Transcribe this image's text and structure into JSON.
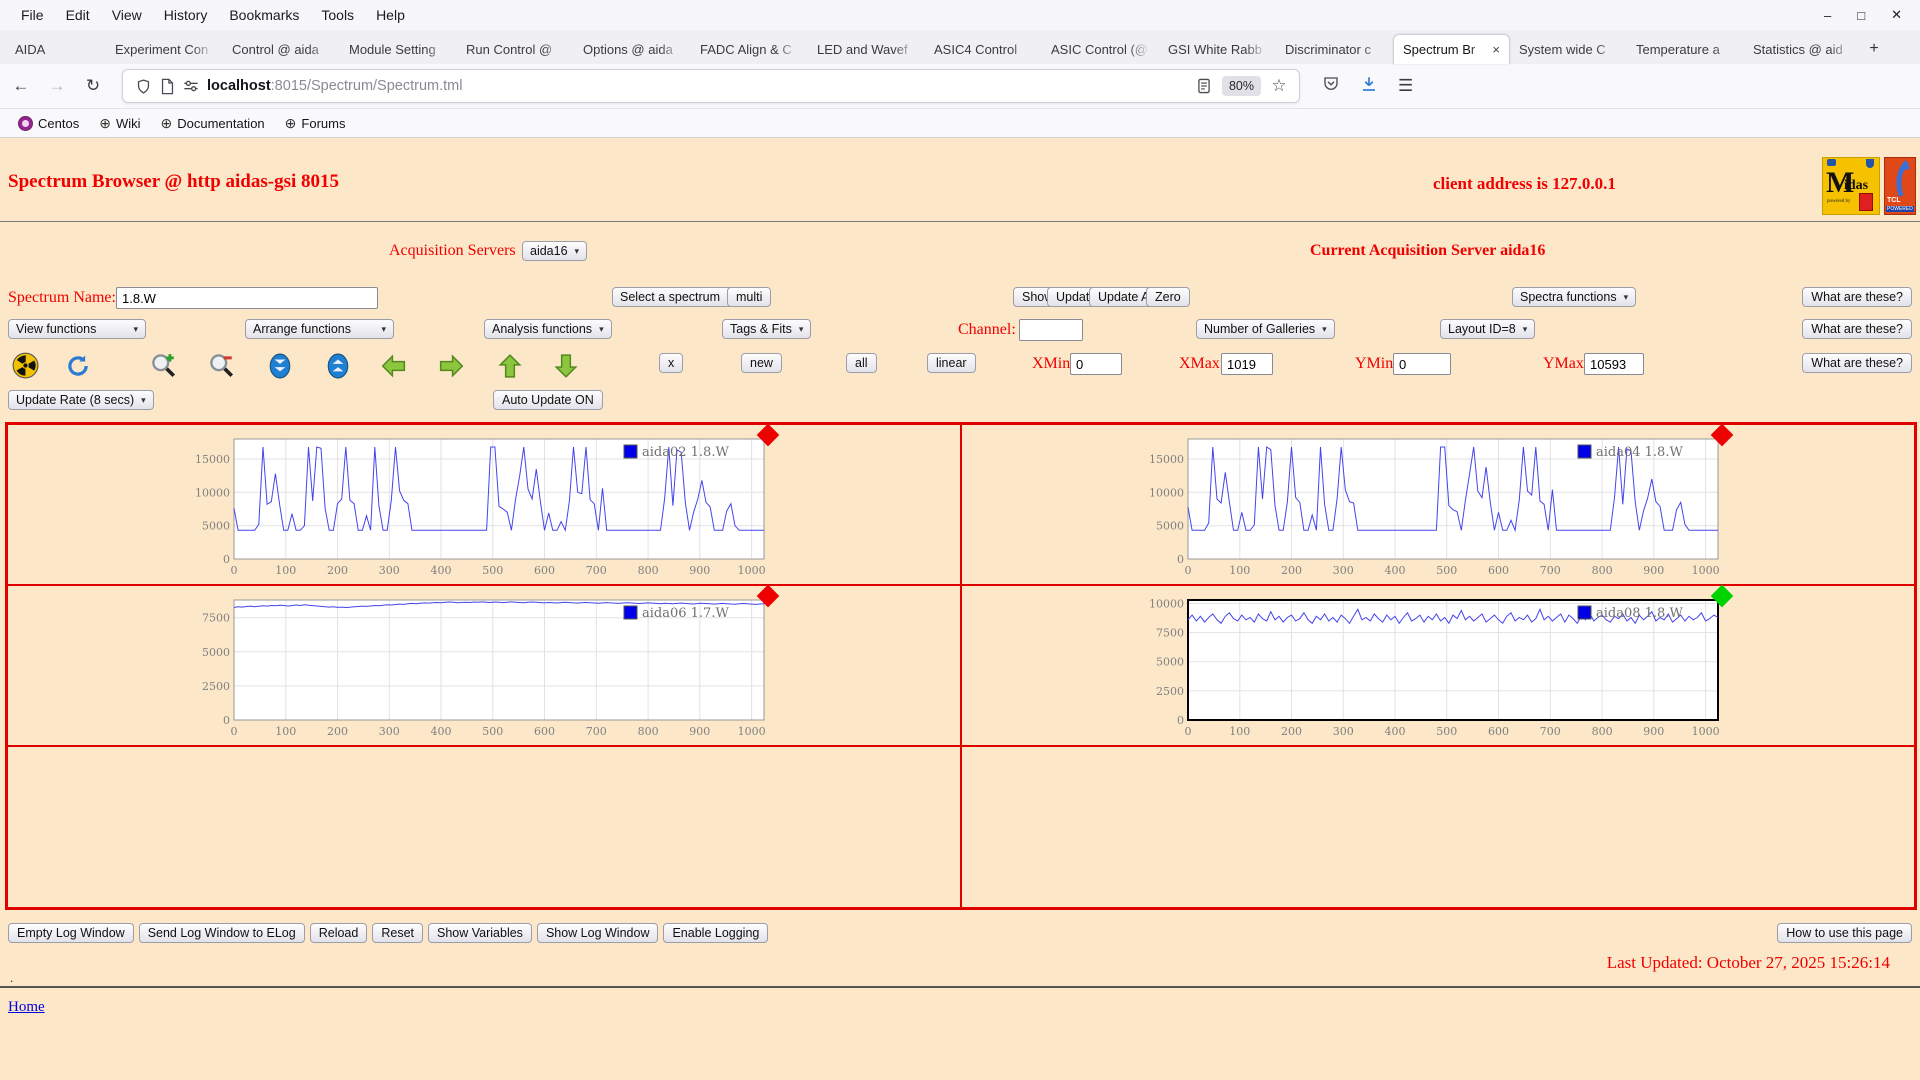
{
  "browser": {
    "menu": [
      "File",
      "Edit",
      "View",
      "History",
      "Bookmarks",
      "Tools",
      "Help"
    ],
    "window_controls": [
      "–",
      "□",
      "✕"
    ],
    "tabs": [
      {
        "label": "AIDA",
        "active": false
      },
      {
        "label": "Experiment Con",
        "active": false
      },
      {
        "label": "Control @ aida",
        "active": false
      },
      {
        "label": "Module Setting",
        "active": false
      },
      {
        "label": "Run Control @",
        "active": false
      },
      {
        "label": "Options @ aida",
        "active": false
      },
      {
        "label": "FADC Align & C",
        "active": false
      },
      {
        "label": "LED and Wavef",
        "active": false
      },
      {
        "label": "ASIC4 Control",
        "active": false
      },
      {
        "label": "ASIC Control (@",
        "active": false
      },
      {
        "label": "GSI White Rabb",
        "active": false
      },
      {
        "label": "Discriminator c",
        "active": false
      },
      {
        "label": "Spectrum Br",
        "active": true
      },
      {
        "label": "System wide C",
        "active": false
      },
      {
        "label": "Temperature a",
        "active": false
      },
      {
        "label": "Statistics @ aid",
        "active": false
      }
    ],
    "new_tab": "+",
    "nav": {
      "back": "←",
      "forward": "→",
      "reload": "↻"
    },
    "url_host": "localhost",
    "url_rest": ":8015/Spectrum/Spectrum.tml",
    "zoom_level": "80%",
    "bookmarks": [
      {
        "label": "Centos",
        "icon": "centos-icon"
      },
      {
        "label": "Wiki",
        "icon": "globe-icon"
      },
      {
        "label": "Documentation",
        "icon": "globe-icon"
      },
      {
        "label": "Forums",
        "icon": "globe-icon"
      }
    ]
  },
  "page": {
    "title": "Spectrum Browser @ http aidas-gsi 8015",
    "client_address": "client address is 127.0.0.1",
    "acquisition": {
      "label": "Acquisition Servers",
      "selected": "aida16",
      "current": "Current Acquisition Server aida16"
    },
    "spectrum_row": {
      "name_label": "Spectrum Name:",
      "name_value": "1.8.W",
      "select_spectrum": "Select a spectrum",
      "multi": "multi",
      "show": "Show",
      "update": "Update",
      "update_all": "Update All",
      "zero": "Zero",
      "spectra_functions": "Spectra functions",
      "what": "What are these?"
    },
    "functions_row": {
      "view": "View functions",
      "arrange": "Arrange functions",
      "analysis": "Analysis functions",
      "tags": "Tags & Fits",
      "channel_label": "Channel:",
      "channel_value": "",
      "galleries": "Number of Galleries",
      "layout": "Layout ID=8",
      "what": "What are these?"
    },
    "icons_row": {
      "icons": [
        "radioactive-icon",
        "refresh-icon",
        "zoom-in-icon",
        "zoom-out-icon",
        "scroll-down-icon",
        "scroll-up-icon",
        "arrow-left-icon",
        "arrow-right-icon",
        "arrow-up-icon",
        "arrow-down-icon"
      ],
      "x": "x",
      "new": "new",
      "all": "all",
      "linear": "linear",
      "xmin_label": "XMin",
      "xmin": "0",
      "xmax_label": "XMax",
      "xmax": "1019",
      "ymin_label": "YMin",
      "ymin": "0",
      "ymax_label": "YMax",
      "ymax": "10593",
      "what": "What are these?"
    },
    "update_row": {
      "rate": "Update Rate (8 secs)",
      "auto": "Auto Update ON"
    },
    "log_buttons": [
      "Empty Log Window",
      "Send Log Window to ELog",
      "Reload",
      "Reset",
      "Show Variables",
      "Show Log Window",
      "Enable Logging"
    ],
    "help_button": "How to use this page",
    "last_updated": "Last Updated: October 27, 2025 15:26:14",
    "dot": ".",
    "home": "Home"
  },
  "chart_data": [
    {
      "type": "line",
      "name": "aida02 1.8.W",
      "title": "aida02 1.8.W",
      "xlabel": "",
      "ylabel": "",
      "grid": true,
      "legend_position": "top-right",
      "xlim": [
        0,
        1024
      ],
      "ylim": [
        0,
        18000
      ],
      "xticks": [
        0,
        100,
        200,
        300,
        400,
        500,
        600,
        700,
        800,
        900,
        1000
      ],
      "yticks": [
        0,
        5000,
        10000,
        15000
      ],
      "line_color": "#4444ee",
      "marker_color": "#ee0000",
      "border": "#999999",
      "border_width": 1,
      "x_step": 8,
      "values": [
        7600,
        4300,
        4300,
        4300,
        4300,
        4300,
        5200,
        16800,
        8200,
        8600,
        12800,
        8300,
        4300,
        4300,
        6800,
        4300,
        4300,
        5000,
        16800,
        8700,
        16800,
        16600,
        7600,
        4300,
        4300,
        8300,
        9000,
        16800,
        8800,
        8300,
        4300,
        4300,
        6500,
        4300,
        16800,
        8000,
        4300,
        4300,
        8800,
        16800,
        10200,
        8800,
        8300,
        4300,
        4300,
        4300,
        4300,
        4300,
        4300,
        4300,
        4300,
        4300,
        4300,
        4300,
        4300,
        4300,
        4300,
        4300,
        4300,
        4300,
        4300,
        4300,
        16800,
        16800,
        7900,
        7500,
        7000,
        4300,
        9000,
        12500,
        16800,
        10500,
        9000,
        13500,
        8600,
        4300,
        6900,
        4300,
        4300,
        5600,
        4300,
        8700,
        16800,
        10000,
        9800,
        16800,
        8900,
        8300,
        4300,
        10600,
        4300,
        4300,
        4300,
        4300,
        4300,
        4300,
        4300,
        4300,
        4300,
        4300,
        4300,
        4300,
        4300,
        4300,
        9000,
        16800,
        8000,
        16400,
        16000,
        8500,
        4300,
        7000,
        9000,
        11800,
        8500,
        7800,
        4300,
        4300,
        4300,
        7200,
        8300,
        5000,
        4300,
        4300,
        4300,
        4300,
        4300,
        4300,
        4300
      ]
    },
    {
      "type": "line",
      "name": "aida04 1.8.W",
      "title": "aida04 1.8.W",
      "xlabel": "",
      "ylabel": "",
      "grid": true,
      "legend_position": "top-right",
      "xlim": [
        0,
        1024
      ],
      "ylim": [
        0,
        18000
      ],
      "xticks": [
        0,
        100,
        200,
        300,
        400,
        500,
        600,
        700,
        800,
        900,
        1000
      ],
      "yticks": [
        0,
        5000,
        10000,
        15000
      ],
      "line_color": "#4444ee",
      "marker_color": "#ee0000",
      "border": "#999999",
      "border_width": 1,
      "x_step": 8,
      "values": [
        7800,
        4300,
        4300,
        4300,
        4300,
        5400,
        16800,
        9000,
        8400,
        13000,
        8500,
        4300,
        4300,
        7000,
        4300,
        4300,
        5100,
        16800,
        9000,
        16800,
        16400,
        8000,
        4300,
        4300,
        8600,
        16800,
        9200,
        8500,
        4300,
        4300,
        6600,
        4300,
        16800,
        8200,
        4300,
        4300,
        9000,
        16800,
        10400,
        8600,
        8400,
        4300,
        4300,
        4300,
        4300,
        4300,
        4300,
        4300,
        4300,
        4300,
        4300,
        4300,
        4300,
        4300,
        4300,
        4300,
        4300,
        4300,
        4300,
        4300,
        4300,
        16800,
        16800,
        8000,
        7400,
        7100,
        4300,
        8800,
        12800,
        16800,
        10200,
        9200,
        13800,
        8500,
        4300,
        7000,
        4300,
        4300,
        5800,
        4300,
        8900,
        16800,
        10200,
        9600,
        16800,
        8700,
        8200,
        4300,
        10400,
        4300,
        4300,
        4300,
        4300,
        4300,
        4300,
        4300,
        4300,
        4300,
        4300,
        4300,
        4300,
        4300,
        4300,
        9200,
        16800,
        8200,
        16500,
        16200,
        8600,
        4300,
        7200,
        9100,
        12000,
        8600,
        7900,
        4300,
        4300,
        4300,
        7400,
        8500,
        5200,
        4300,
        4300,
        4300,
        4300,
        4300,
        4300,
        4300,
        4300
      ]
    },
    {
      "type": "line",
      "name": "aida06 1.7.W",
      "title": "aida06 1.7.W",
      "xlabel": "",
      "ylabel": "",
      "grid": true,
      "legend_position": "top-right",
      "xlim": [
        0,
        1024
      ],
      "ylim": [
        0,
        8800
      ],
      "xticks": [
        0,
        100,
        200,
        300,
        400,
        500,
        600,
        700,
        800,
        900,
        1000
      ],
      "yticks": [
        0,
        2500,
        5000,
        7500
      ],
      "line_color": "#4444ee",
      "marker_color": "#ee0000",
      "border": "#999999",
      "border_width": 1,
      "x_step": 8,
      "values": [
        8250,
        8300,
        8280,
        8320,
        8350,
        8300,
        8340,
        8380,
        8350,
        8400,
        8380,
        8420,
        8400,
        8360,
        8390,
        8430,
        8400,
        8450,
        8420,
        8390,
        8360,
        8330,
        8300,
        8280,
        8300,
        8260,
        8280,
        8250,
        8270,
        8300,
        8320,
        8350,
        8330,
        8360,
        8400,
        8380,
        8420,
        8450,
        8430,
        8470,
        8500,
        8480,
        8520,
        8550,
        8530,
        8560,
        8590,
        8570,
        8600,
        8620,
        8600,
        8630,
        8650,
        8630,
        8600,
        8620,
        8640,
        8620,
        8650,
        8630,
        8660,
        8640,
        8620,
        8650,
        8630,
        8610,
        8640,
        8660,
        8640,
        8620,
        8600,
        8630,
        8650,
        8630,
        8610,
        8590,
        8620,
        8600,
        8580,
        8610,
        8630,
        8610,
        8590,
        8570,
        8600,
        8620,
        8600,
        8580,
        8560,
        8590,
        8610,
        8590,
        8570,
        8550,
        8580,
        8600,
        8580,
        8560,
        8540,
        8570,
        8590,
        8570,
        8550,
        8530,
        8560,
        8540,
        8520,
        8550,
        8570,
        8550,
        8530,
        8510,
        8540,
        8560,
        8540,
        8520,
        8500,
        8530,
        8550,
        8530,
        8510,
        8490,
        8520,
        8540,
        8520,
        8500,
        8480,
        8510,
        8530
      ]
    },
    {
      "type": "line",
      "name": "aida08 1.8.W",
      "title": "aida08 1.8.W",
      "xlabel": "",
      "ylabel": "",
      "grid": true,
      "legend_position": "top-right",
      "xlim": [
        0,
        1024
      ],
      "ylim": [
        0,
        10300
      ],
      "xticks": [
        0,
        100,
        200,
        300,
        400,
        500,
        600,
        700,
        800,
        900,
        1000
      ],
      "yticks": [
        0,
        2500,
        5000,
        7500,
        10000
      ],
      "line_color": "#4444ee",
      "marker_color": "#00d400",
      "border": "#000000",
      "border_width": 2,
      "x_step": 8,
      "values": [
        8600,
        9000,
        8500,
        8900,
        8400,
        8800,
        9100,
        8600,
        8300,
        8900,
        9200,
        8700,
        8500,
        9000,
        8600,
        8800,
        8400,
        9100,
        8700,
        8500,
        9300,
        8600,
        8900,
        8400,
        8800,
        9000,
        8500,
        8700,
        9200,
        8600,
        8300,
        8900,
        8600,
        9100,
        8500,
        8800,
        8400,
        9000,
        8700,
        8300,
        8900,
        9500,
        8600,
        8800,
        8500,
        9100,
        8700,
        8400,
        9000,
        8600,
        8900,
        8300,
        8800,
        9200,
        8500,
        8700,
        9000,
        8400,
        8900,
        8600,
        9100,
        8500,
        8800,
        8300,
        9000,
        8700,
        9400,
        8600,
        8900,
        8500,
        8800,
        9100,
        8400,
        8700,
        9000,
        8600,
        8300,
        8900,
        9200,
        8500,
        8800,
        8600,
        9000,
        8400,
        8700,
        9500,
        8600,
        8900,
        8500,
        8800,
        9100,
        8400,
        9000,
        8700,
        8300,
        8900,
        8600,
        9200,
        8500,
        8800,
        9000,
        8600,
        8400,
        8900,
        8700,
        9100,
        8500,
        8800,
        8300,
        9000,
        8600,
        8900,
        9300,
        8500,
        8800,
        8600,
        9100,
        8400,
        8700,
        9000,
        8500,
        8900,
        8600,
        8800,
        9200,
        8500,
        8700,
        9000,
        8800
      ]
    }
  ]
}
